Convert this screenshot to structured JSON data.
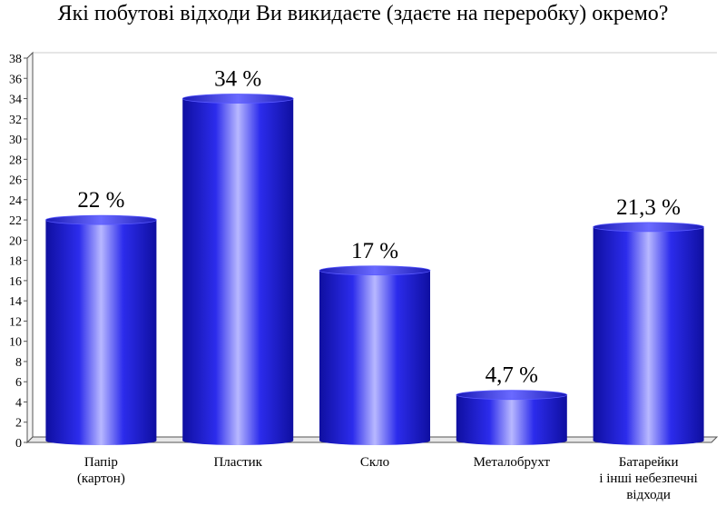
{
  "chart_data": {
    "type": "bar",
    "title": "Які побутові відходи Ви викидаєте (здаєте на переробку) окремо?",
    "categories": [
      [
        "Папір",
        "(картон)"
      ],
      [
        "Пластик"
      ],
      [
        "Скло"
      ],
      [
        "Металобрухт"
      ],
      [
        "Батарейки",
        "і інші небезпечні",
        "відходи"
      ]
    ],
    "values": [
      22,
      34,
      17,
      4.7,
      21.3
    ],
    "data_labels": [
      "22 %",
      "34 %",
      "17 %",
      "4,7 %",
      "21,3 %"
    ],
    "ylim": [
      0,
      38
    ],
    "yticks": [
      0,
      2,
      4,
      6,
      8,
      10,
      12,
      14,
      16,
      18,
      20,
      22,
      24,
      26,
      28,
      30,
      32,
      34,
      36,
      38
    ],
    "xlabel": "",
    "ylabel": "",
    "legend": "none",
    "colors": {
      "bar_dark": "#0f0fa0",
      "bar_mid": "#2a2ae6",
      "bar_light": "#b8b8ff",
      "axis": "#555555"
    }
  }
}
